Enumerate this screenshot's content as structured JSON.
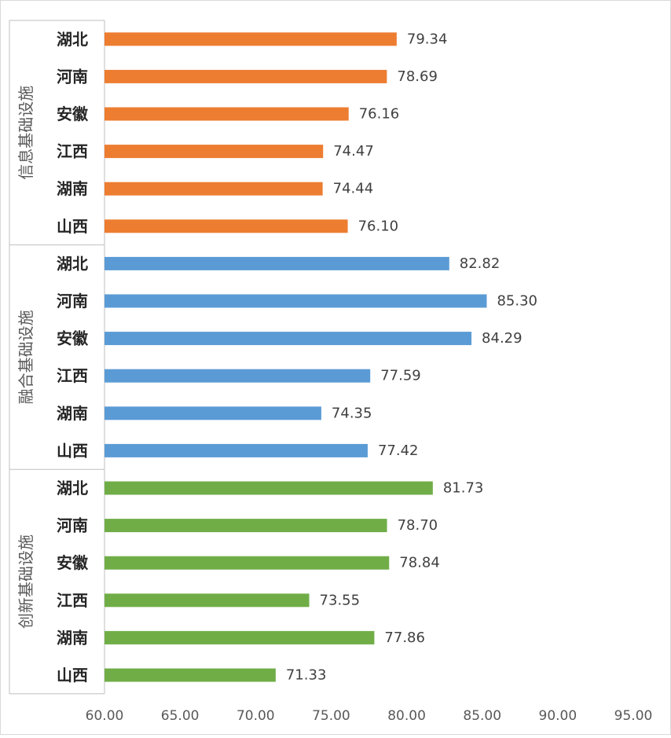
{
  "chart_data": {
    "type": "bar",
    "orientation": "horizontal",
    "xlim": [
      60,
      95
    ],
    "x_ticks": [
      "60.00",
      "65.00",
      "70.00",
      "75.00",
      "80.00",
      "85.00",
      "90.00",
      "95.00"
    ],
    "grid": false,
    "legend": "none",
    "groups": [
      {
        "name": "信息基础设施",
        "color": "#ED7D31",
        "categories": [
          "湖北",
          "河南",
          "安徽",
          "江西",
          "湖南",
          "山西"
        ],
        "values": [
          79.34,
          78.69,
          76.16,
          74.47,
          74.44,
          76.1
        ],
        "labels": [
          "79.34",
          "78.69",
          "76.16",
          "74.47",
          "74.44",
          "76.10"
        ]
      },
      {
        "name": "融合基础设施",
        "color": "#5B9BD5",
        "categories": [
          "湖北",
          "河南",
          "安徽",
          "江西",
          "湖南",
          "山西"
        ],
        "values": [
          82.82,
          85.3,
          84.29,
          77.59,
          74.35,
          77.42
        ],
        "labels": [
          "82.82",
          "85.30",
          "84.29",
          "77.59",
          "74.35",
          "77.42"
        ]
      },
      {
        "name": "创新基础设施",
        "color": "#70AD47",
        "categories": [
          "湖北",
          "河南",
          "安徽",
          "江西",
          "湖南",
          "山西"
        ],
        "values": [
          81.73,
          78.7,
          78.84,
          73.55,
          77.86,
          71.33
        ],
        "labels": [
          "81.73",
          "78.70",
          "78.84",
          "73.55",
          "77.86",
          "71.33"
        ]
      }
    ]
  }
}
